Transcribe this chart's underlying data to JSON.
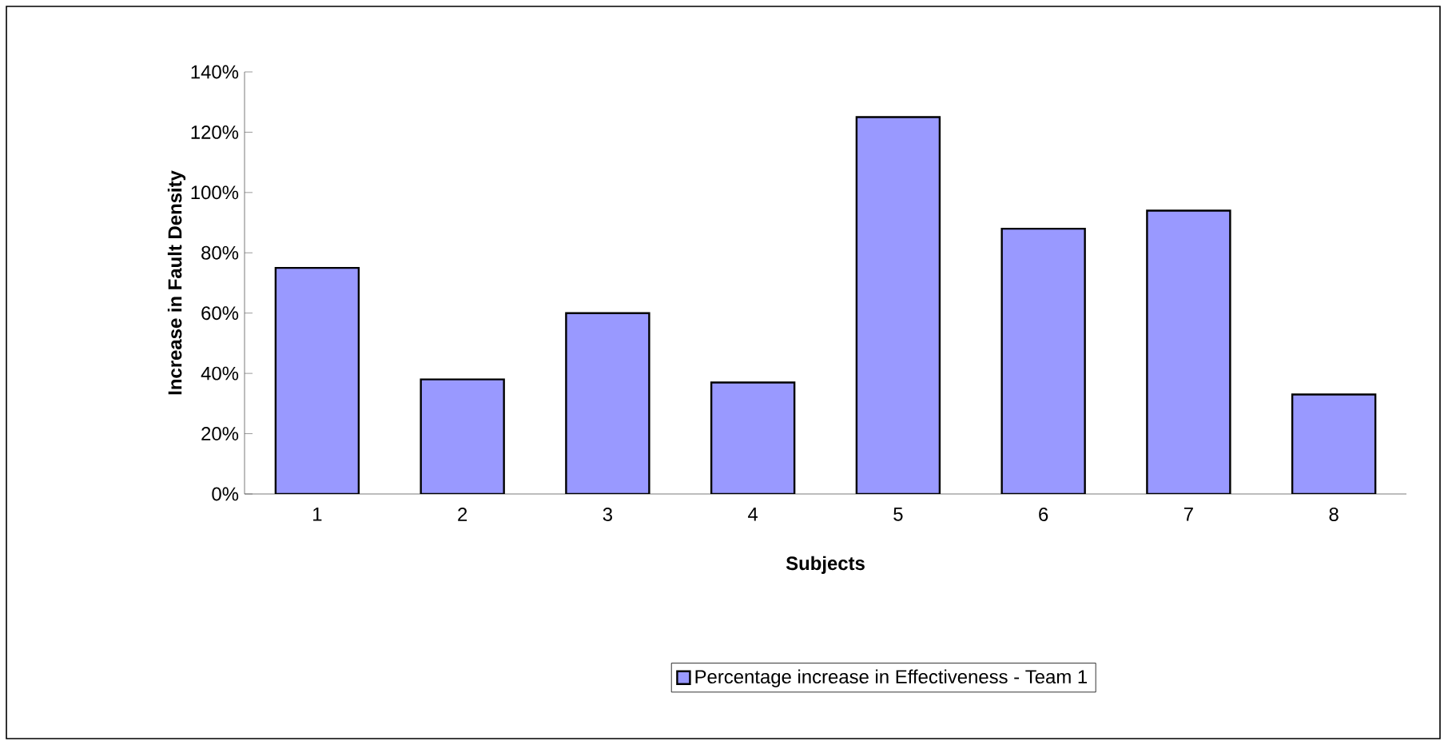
{
  "chart_data": {
    "type": "bar",
    "xlabel": "Subjects",
    "ylabel": "Increase in Fault Density",
    "categories": [
      "1",
      "2",
      "3",
      "4",
      "5",
      "6",
      "7",
      "8"
    ],
    "series": [
      {
        "name": "Percentage increase in Effectiveness - Team 1",
        "color": "#9999ff",
        "values": [
          75,
          38,
          60,
          37,
          125,
          88,
          94,
          33
        ]
      }
    ],
    "ylim": [
      0,
      140
    ],
    "yticks": [
      {
        "value": 0,
        "label": "0%"
      },
      {
        "value": 20,
        "label": "20%"
      },
      {
        "value": 40,
        "label": "40%"
      },
      {
        "value": 60,
        "label": "60%"
      },
      {
        "value": 80,
        "label": "80%"
      },
      {
        "value": 100,
        "label": "100%"
      },
      {
        "value": 120,
        "label": "120%"
      },
      {
        "value": 140,
        "label": "140%"
      }
    ],
    "legend": "bottom",
    "grid": false
  }
}
